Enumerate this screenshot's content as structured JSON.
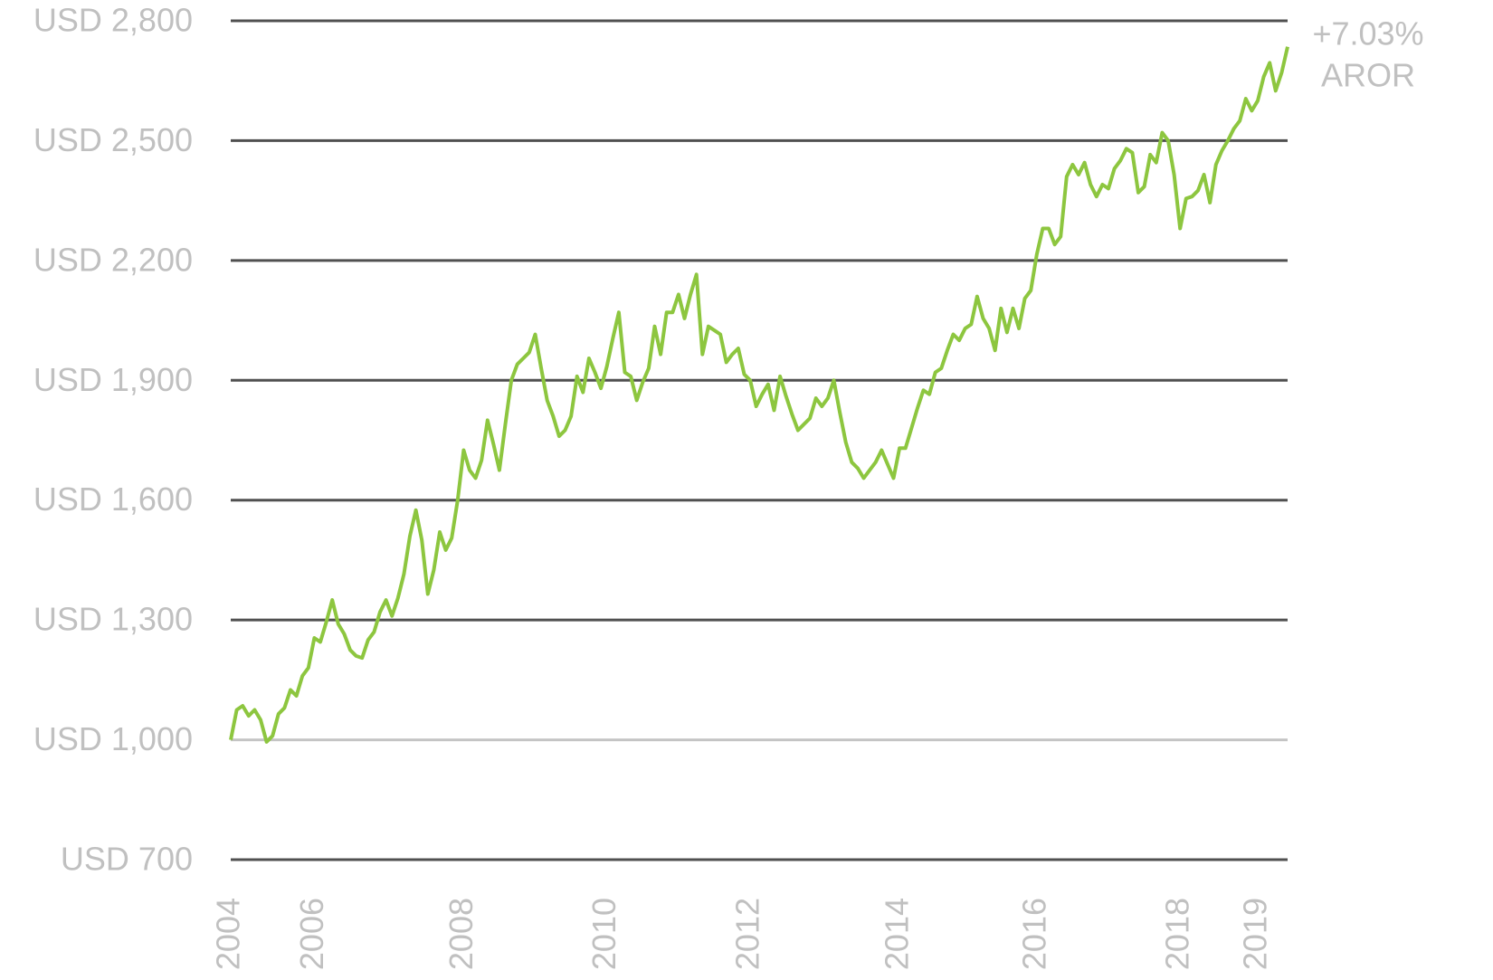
{
  "chart_data": {
    "type": "line",
    "annotation_lines": [
      "+7.03%",
      "AROR"
    ],
    "categories": [
      "2004",
      null,
      null,
      null,
      null,
      null,
      null,
      null,
      null,
      null,
      null,
      null,
      null,
      null,
      "2006",
      null,
      null,
      null,
      null,
      null,
      null,
      null,
      null,
      null,
      null,
      null,
      null,
      null,
      null,
      null,
      null,
      null,
      null,
      null,
      null,
      null,
      null,
      null,
      null,
      "2008",
      null,
      null,
      null,
      null,
      null,
      null,
      null,
      null,
      null,
      null,
      null,
      null,
      null,
      null,
      null,
      null,
      null,
      null,
      null,
      null,
      null,
      null,
      null,
      "2010",
      null,
      null,
      null,
      null,
      null,
      null,
      null,
      null,
      null,
      null,
      null,
      null,
      null,
      null,
      null,
      null,
      null,
      null,
      null,
      null,
      null,
      null,
      null,
      "2012",
      null,
      null,
      null,
      null,
      null,
      null,
      null,
      null,
      null,
      null,
      null,
      null,
      null,
      null,
      null,
      null,
      null,
      null,
      null,
      null,
      null,
      null,
      null,
      null,
      "2014",
      null,
      null,
      null,
      null,
      null,
      null,
      null,
      null,
      null,
      null,
      null,
      null,
      null,
      null,
      null,
      null,
      null,
      null,
      null,
      null,
      null,
      null,
      "2016",
      null,
      null,
      null,
      null,
      null,
      null,
      null,
      null,
      null,
      null,
      null,
      null,
      null,
      null,
      null,
      null,
      null,
      null,
      null,
      null,
      null,
      null,
      null,
      "2018",
      null,
      null,
      null,
      null,
      null,
      null,
      null,
      null,
      null,
      null,
      null,
      null,
      "2019",
      null,
      null,
      null,
      null,
      null
    ],
    "values": [
      1000,
      1075,
      1085,
      1060,
      1075,
      1050,
      995,
      1010,
      1065,
      1080,
      1125,
      1110,
      1160,
      1180,
      1255,
      1245,
      1295,
      1350,
      1290,
      1265,
      1225,
      1210,
      1205,
      1250,
      1270,
      1320,
      1350,
      1310,
      1355,
      1415,
      1510,
      1575,
      1500,
      1365,
      1425,
      1520,
      1475,
      1505,
      1600,
      1725,
      1675,
      1655,
      1700,
      1800,
      1740,
      1675,
      1790,
      1900,
      1940,
      1955,
      1970,
      2015,
      1930,
      1850,
      1810,
      1760,
      1775,
      1810,
      1910,
      1870,
      1955,
      1920,
      1880,
      1935,
      2005,
      2070,
      1920,
      1910,
      1850,
      1895,
      1930,
      2035,
      1965,
      2070,
      2070,
      2115,
      2055,
      2115,
      2165,
      1965,
      2035,
      2025,
      2015,
      1945,
      1965,
      1980,
      1915,
      1900,
      1835,
      1865,
      1890,
      1825,
      1910,
      1860,
      1815,
      1775,
      1790,
      1805,
      1855,
      1835,
      1855,
      1900,
      1820,
      1745,
      1695,
      1680,
      1655,
      1675,
      1695,
      1725,
      1690,
      1655,
      1730,
      1730,
      1780,
      1830,
      1875,
      1865,
      1920,
      1930,
      1975,
      2015,
      2000,
      2030,
      2040,
      2110,
      2055,
      2030,
      1975,
      2080,
      2020,
      2080,
      2030,
      2105,
      2125,
      2215,
      2280,
      2280,
      2240,
      2260,
      2410,
      2440,
      2415,
      2445,
      2390,
      2360,
      2390,
      2380,
      2430,
      2450,
      2480,
      2470,
      2370,
      2385,
      2465,
      2445,
      2520,
      2500,
      2415,
      2280,
      2355,
      2360,
      2375,
      2415,
      2345,
      2440,
      2475,
      2500,
      2530,
      2550,
      2605,
      2575,
      2600,
      2660,
      2695,
      2625,
      2670,
      2735
    ],
    "color": "#8dc63f",
    "ylim": [
      700,
      2800
    ],
    "yticks": [
      {
        "value": 700,
        "label": "USD 700"
      },
      {
        "value": 1000,
        "label": "USD 1,000"
      },
      {
        "value": 1300,
        "label": "USD 1,300"
      },
      {
        "value": 1600,
        "label": "USD 1,600"
      },
      {
        "value": 1900,
        "label": "USD 1,900"
      },
      {
        "value": 2200,
        "label": "USD 2,200"
      },
      {
        "value": 2500,
        "label": "USD 2,500"
      },
      {
        "value": 2800,
        "label": "USD 2,800"
      }
    ],
    "grid": true,
    "grid_color": "#505050",
    "baseline_tick": 1,
    "baseline_color": "#c4c4c4"
  }
}
